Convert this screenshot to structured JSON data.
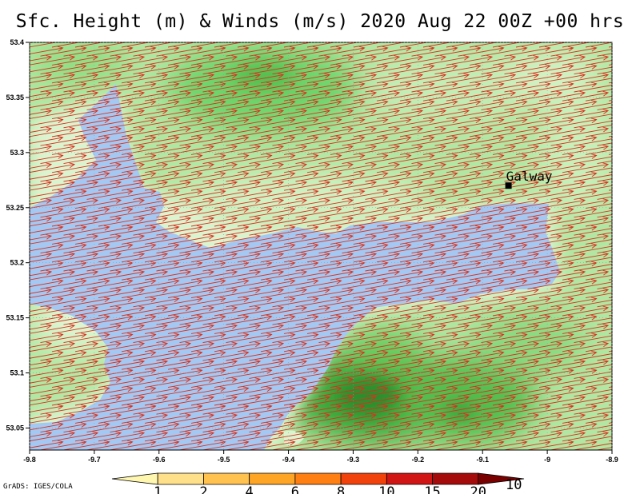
{
  "title": "Sfc. Height (m) & Winds (m/s) 2020 Aug 22 00Z +00 hrs",
  "credit": "GrADS: IGES/COLA",
  "city": {
    "name": "Galway",
    "lon": -9.06,
    "lat": 53.27
  },
  "colors": {
    "water": "#a5c8f2",
    "wind": "#d7321f",
    "land_light": "#e1f5d4",
    "land_mid": "#b2e6a2"
  },
  "map": {
    "lon_range": [
      -9.8,
      -8.9
    ],
    "lat_range": [
      53.03,
      53.4
    ],
    "lon_ticks": [
      "-9.8",
      "-9.7",
      "-9.6",
      "-9.5",
      "-9.4",
      "-9.3",
      "-9.2",
      "-9.1",
      "-9",
      "-8.9"
    ],
    "lat_ticks": [
      "53.05",
      "53.1",
      "53.15",
      "53.2",
      "53.25",
      "53.3",
      "53.35",
      "53.4"
    ]
  },
  "wind": {
    "u": 9.0,
    "v": 1.6,
    "reference_vector_label": "10"
  },
  "colorbar": {
    "labels": [
      "1",
      "2",
      "4",
      "6",
      "8",
      "10",
      "15",
      "20"
    ],
    "colors": [
      "#fff6b0",
      "#ffe08a",
      "#ffc24f",
      "#ffa526",
      "#ff7f12",
      "#f2420c",
      "#d11414",
      "#a60b0b",
      "#7a0000"
    ]
  }
}
